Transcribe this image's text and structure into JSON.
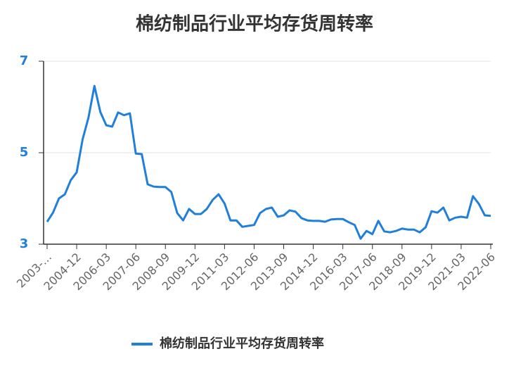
{
  "chart_data": {
    "type": "line",
    "title": "棉纺制品行业平均存货周转率",
    "categories": [
      "2003-...",
      null,
      null,
      null,
      null,
      "2004-12",
      null,
      null,
      null,
      null,
      "2006-03",
      null,
      null,
      null,
      null,
      "2007-06",
      null,
      null,
      null,
      null,
      "2008-09",
      null,
      null,
      null,
      null,
      "2009-12",
      null,
      null,
      null,
      null,
      "2011-03",
      null,
      null,
      null,
      null,
      "2012-06",
      null,
      null,
      null,
      null,
      "2013-09",
      null,
      null,
      null,
      null,
      "2014-12",
      null,
      null,
      null,
      null,
      "2016-03",
      null,
      null,
      null,
      null,
      "2017-06",
      null,
      null,
      null,
      null,
      "2018-09",
      null,
      null,
      null,
      null,
      "2019-12",
      null,
      null,
      null,
      null,
      "2021-03",
      null,
      null,
      null,
      null,
      "2022-06"
    ],
    "series": [
      {
        "name": "棉纺制品行业平均存货周转率",
        "color": "#1f7fdb",
        "values": [
          3.49,
          3.69,
          4.0,
          4.09,
          4.4,
          4.57,
          5.29,
          5.77,
          6.46,
          5.89,
          5.6,
          5.57,
          5.88,
          5.82,
          5.86,
          4.98,
          4.97,
          4.31,
          4.26,
          4.25,
          4.25,
          4.14,
          3.68,
          3.52,
          3.77,
          3.66,
          3.66,
          3.77,
          3.97,
          4.09,
          3.89,
          3.52,
          3.52,
          3.38,
          3.4,
          3.42,
          3.68,
          3.77,
          3.8,
          3.6,
          3.63,
          3.74,
          3.71,
          3.57,
          3.52,
          3.51,
          3.51,
          3.49,
          3.54,
          3.55,
          3.55,
          3.48,
          3.42,
          3.12,
          3.29,
          3.22,
          3.51,
          3.28,
          3.26,
          3.29,
          3.34,
          3.32,
          3.32,
          3.26,
          3.37,
          3.72,
          3.69,
          3.8,
          3.52,
          3.58,
          3.6,
          3.58,
          4.05,
          3.88,
          3.63,
          3.62
        ]
      }
    ],
    "ylim": [
      3,
      7
    ],
    "yticks": [
      3,
      5,
      7
    ],
    "grid": true
  }
}
